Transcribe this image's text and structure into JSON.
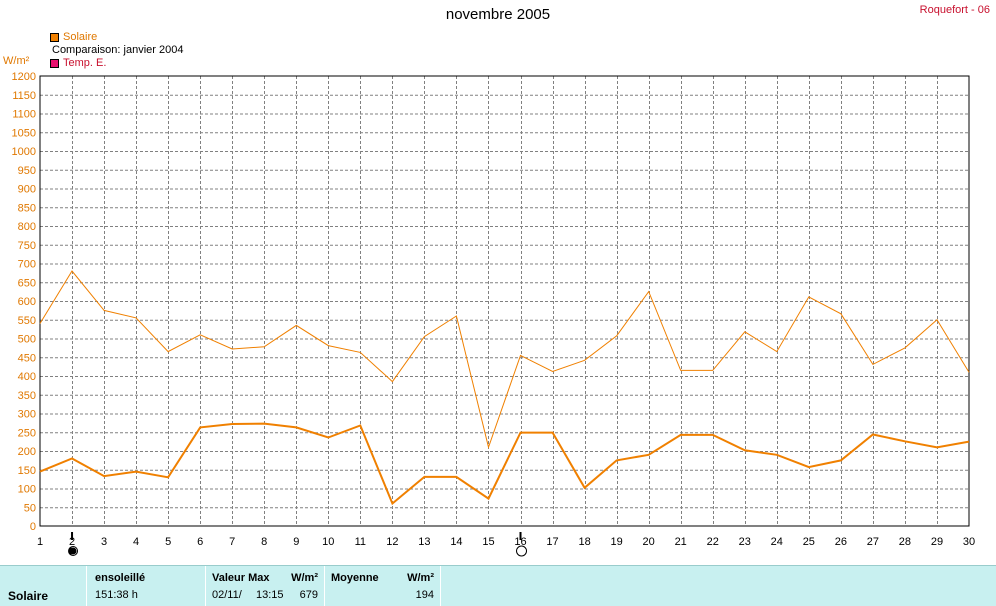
{
  "header": {
    "title": "novembre 2005",
    "station": "Roquefort - 06"
  },
  "legend": {
    "solar": "Solaire",
    "comparison": "Comparaison: janvier 2004",
    "temp": "Temp. E."
  },
  "colors": {
    "solar": "#f08000",
    "temp": "#e8106e",
    "grid": "#808080",
    "footer_bg": "#c8f0f0"
  },
  "chart_data": {
    "type": "line",
    "title": "novembre 2005",
    "ylabel": "W/m²",
    "ylim": [
      0,
      1200
    ],
    "ytick_step": 50,
    "xlim": [
      1,
      30
    ],
    "x": [
      1,
      2,
      3,
      4,
      5,
      6,
      7,
      8,
      9,
      10,
      11,
      12,
      13,
      14,
      15,
      16,
      17,
      18,
      19,
      20,
      21,
      22,
      23,
      24,
      25,
      26,
      27,
      28,
      29,
      30
    ],
    "grid": true,
    "series": [
      {
        "name": "Solaire",
        "values": [
          145,
          180,
          133,
          145,
          130,
          263,
          272,
          273,
          263,
          236,
          268,
          60,
          131,
          131,
          73,
          249,
          249,
          102,
          175,
          190,
          243,
          243,
          202,
          190,
          157,
          175,
          244,
          226,
          210,
          225
        ]
      },
      {
        "name": "Comparaison: janvier 2004",
        "values": [
          540,
          680,
          575,
          555,
          465,
          510,
          472,
          478,
          535,
          481,
          463,
          385,
          505,
          560,
          210,
          455,
          412,
          442,
          507,
          625,
          415,
          415,
          518,
          465,
          611,
          566,
          431,
          475,
          550,
          410
        ]
      }
    ],
    "moon_markers": [
      {
        "day": 2,
        "phase": "new-moon"
      },
      {
        "day": 16,
        "phase": "full-moon"
      }
    ]
  },
  "footer": {
    "name": "Solaire",
    "sunshine_header": "ensoleillé",
    "sunshine_value": "151:38 h",
    "max_header": "Valeur Max",
    "max_unit": "W/m²",
    "max_date": "02/11/",
    "max_time": "13:15",
    "max_value": "679",
    "avg_header": "Moyenne",
    "avg_unit": "W/m²",
    "avg_value": "194"
  }
}
